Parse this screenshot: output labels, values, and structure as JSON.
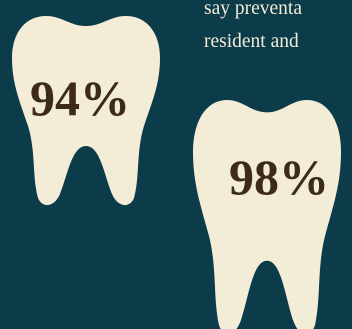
{
  "colors": {
    "background": "#0c3b49",
    "tooth_fill": "#f3ecd7",
    "stat_text": "#3d2a1b",
    "caption_text": "#f3ecd7"
  },
  "caption": {
    "line_1": "say preventa",
    "line_2": "resident and"
  },
  "teeth": [
    {
      "icon": "tooth-icon",
      "value": "94%"
    },
    {
      "icon": "tooth-icon",
      "value": "98%"
    }
  ]
}
